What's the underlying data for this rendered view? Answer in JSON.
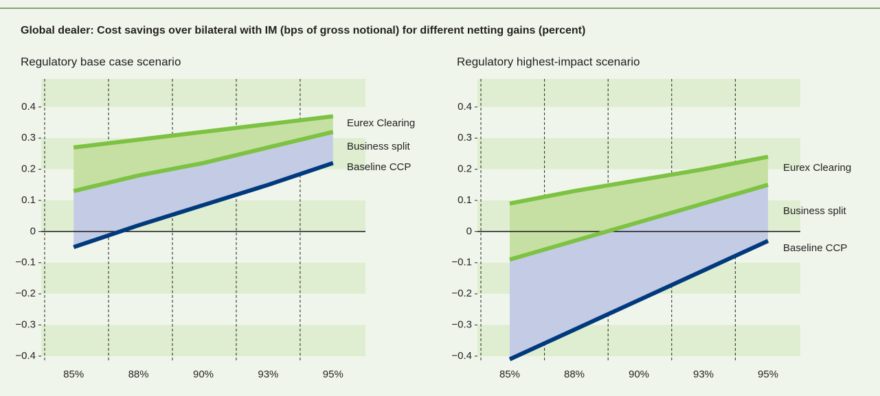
{
  "title": "Global dealer: Cost savings over bilateral with IM (bps of gross notional) for different netting gains (percent)",
  "chart_data": [
    {
      "type": "line",
      "title": "Regulatory base case scenario",
      "categories": [
        "85%",
        "88%",
        "90%",
        "93%",
        "95%"
      ],
      "series": [
        {
          "name": "Eurex Clearing",
          "color": "#7dc242",
          "values": [
            0.27,
            0.295,
            0.32,
            0.345,
            0.37
          ]
        },
        {
          "name": "Business split",
          "color": "#7dc242",
          "values": [
            0.13,
            0.18,
            0.22,
            0.27,
            0.32
          ]
        },
        {
          "name": "Baseline CCP",
          "color": "#003a7d",
          "values": [
            -0.05,
            0.02,
            0.085,
            0.15,
            0.22
          ]
        }
      ],
      "ylim": [
        -0.42,
        0.49
      ],
      "yticks": [
        {
          "value": -0.4,
          "label": "−0.4"
        },
        {
          "value": -0.3,
          "label": "−0.3"
        },
        {
          "value": -0.2,
          "label": "−0.2"
        },
        {
          "value": -0.1,
          "label": "−0.1"
        },
        0,
        0.1,
        0.2,
        0.3,
        0.4
      ]
    },
    {
      "type": "line",
      "title": "Regulatory highest-impact scenario",
      "categories": [
        "85%",
        "88%",
        "90%",
        "93%",
        "95%"
      ],
      "series": [
        {
          "name": "Eurex Clearing",
          "color": "#7dc242",
          "values": [
            0.09,
            0.13,
            0.165,
            0.2,
            0.24
          ]
        },
        {
          "name": "Business split",
          "color": "#7dc242",
          "values": [
            -0.09,
            -0.03,
            0.03,
            0.09,
            0.15
          ]
        },
        {
          "name": "Baseline CCP",
          "color": "#003a7d",
          "values": [
            -0.41,
            -0.315,
            -0.22,
            -0.125,
            -0.03
          ]
        }
      ],
      "ylim": [
        -0.42,
        0.49
      ],
      "yticks": [
        {
          "value": -0.4,
          "label": "−0.4"
        },
        {
          "value": -0.3,
          "label": "−0.3"
        },
        {
          "value": -0.2,
          "label": "−0.2"
        },
        {
          "value": -0.1,
          "label": "−0.1"
        },
        0,
        0.1,
        0.2,
        0.3,
        0.4
      ]
    }
  ]
}
